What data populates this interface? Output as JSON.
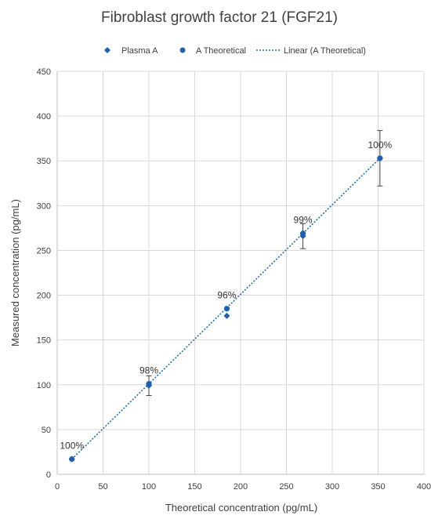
{
  "chart_data": {
    "type": "scatter",
    "title": "Fibroblast growth factor 21 (FGF21)",
    "xlabel": "Theoretical concentration (pg/mL)",
    "ylabel": "Measured concentration (pg/mL)",
    "xlim": [
      0,
      400
    ],
    "ylim": [
      0,
      450
    ],
    "x_ticks": [
      0,
      50,
      100,
      150,
      200,
      250,
      300,
      350,
      400
    ],
    "y_ticks": [
      0,
      50,
      100,
      150,
      200,
      250,
      300,
      350,
      400,
      450
    ],
    "grid": true,
    "legend_position": "top",
    "legend": [
      "Plasma A",
      "A Theoretical",
      "Linear (A Theoretical)"
    ],
    "series": [
      {
        "name": "Plasma A",
        "marker": "diamond",
        "color": "#1f5fad",
        "points": [
          {
            "x": 16,
            "y": 17,
            "error": 0
          },
          {
            "x": 100,
            "y": 99,
            "error": 11
          },
          {
            "x": 185,
            "y": 177,
            "error": 0
          },
          {
            "x": 268,
            "y": 266,
            "error": 14
          },
          {
            "x": 352,
            "y": 353,
            "error": 31
          }
        ]
      },
      {
        "name": "A Theoretical",
        "marker": "circle",
        "color": "#1f5fad",
        "points": [
          {
            "x": 16,
            "y": 17
          },
          {
            "x": 100,
            "y": 101
          },
          {
            "x": 185,
            "y": 185
          },
          {
            "x": 268,
            "y": 269
          },
          {
            "x": 352,
            "y": 353
          }
        ]
      },
      {
        "name": "Linear (A Theoretical)",
        "type": "trendline",
        "style": "dotted",
        "color": "#1f6fa8",
        "x": [
          16,
          352
        ],
        "y": [
          17,
          353
        ]
      }
    ],
    "annotations": [
      {
        "text": "100%",
        "x": 16,
        "y": 17
      },
      {
        "text": "98%",
        "x": 100,
        "y": 101
      },
      {
        "text": "96%",
        "x": 185,
        "y": 185
      },
      {
        "text": "99%",
        "x": 268,
        "y": 269
      },
      {
        "text": "100%",
        "x": 352,
        "y": 353
      }
    ]
  }
}
